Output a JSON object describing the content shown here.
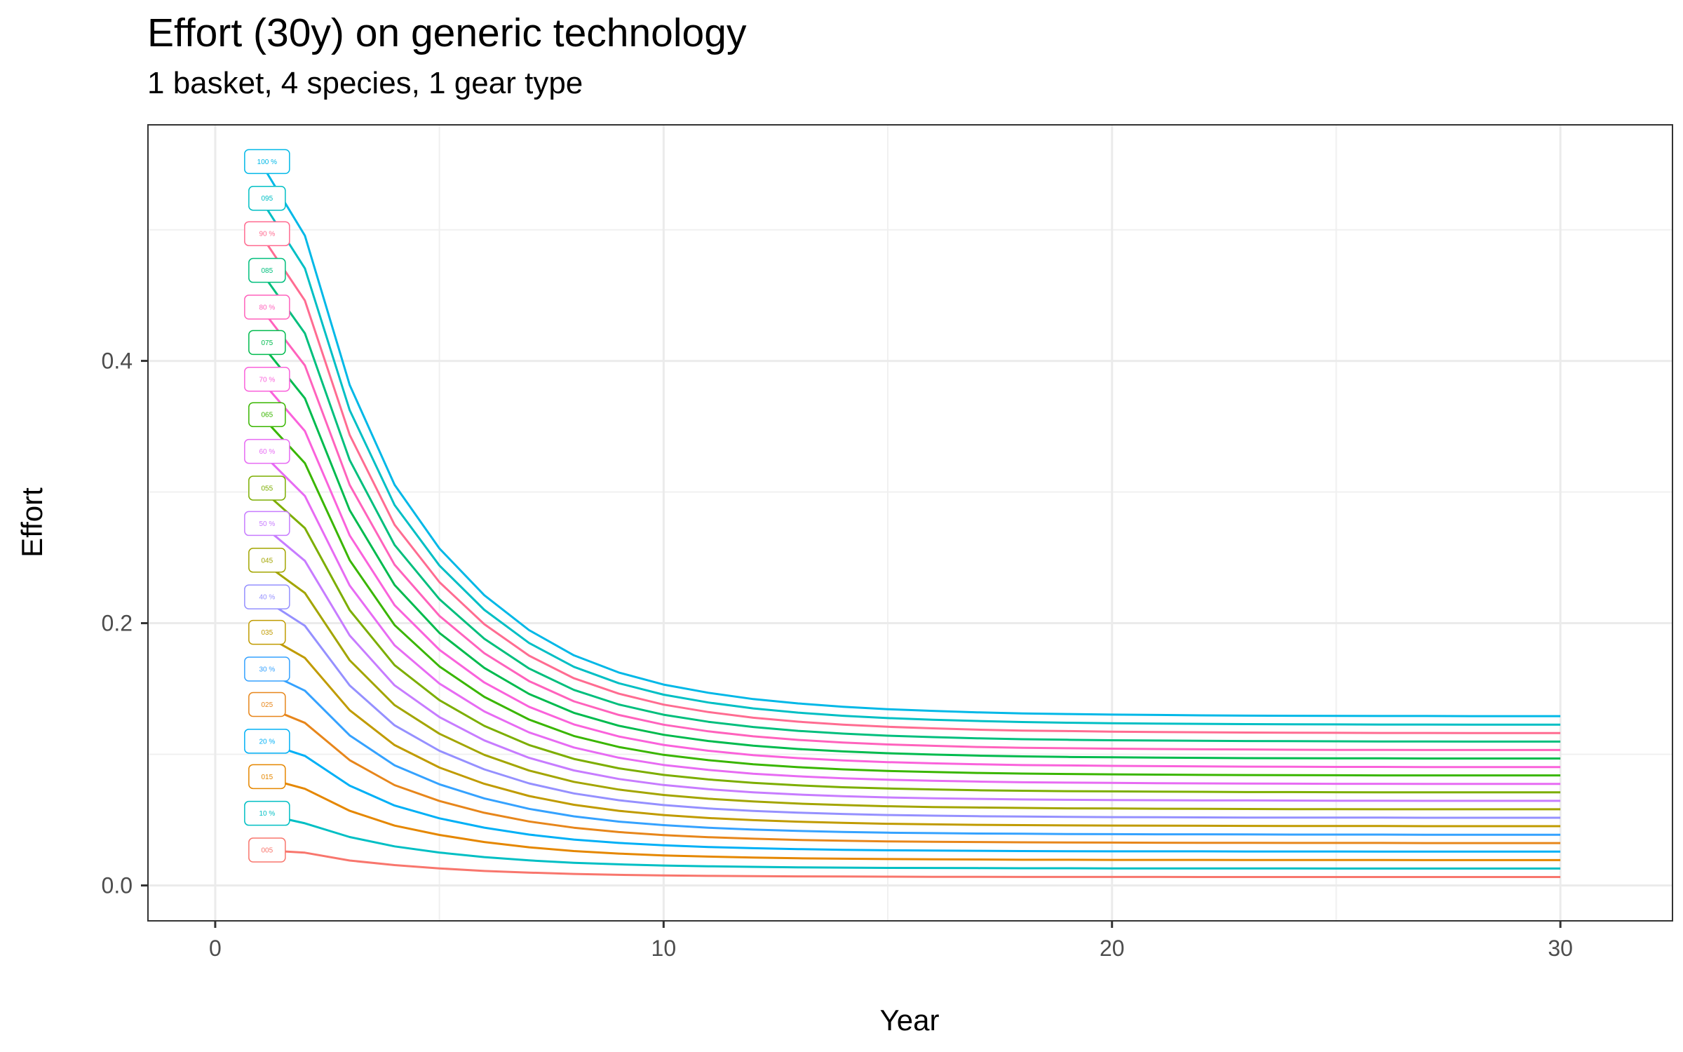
{
  "chart_data": {
    "type": "line",
    "title": "Effort (30y) on generic technology",
    "subtitle": "1 basket, 4 species, 1 gear type",
    "xlabel": "Year",
    "ylabel": "Effort",
    "xlim": [
      -1.5,
      32.5
    ],
    "ylim": [
      -0.027,
      0.58
    ],
    "x_ticks": [
      0,
      10,
      20,
      30
    ],
    "y_ticks": [
      0.0,
      0.2,
      0.4
    ],
    "grid": true,
    "legend": "none",
    "x": [
      1,
      2,
      3,
      4,
      5,
      6,
      7,
      8,
      9,
      10,
      11,
      12,
      13,
      14,
      15,
      16,
      17,
      18,
      19,
      20,
      21,
      22,
      23,
      24,
      25,
      26,
      27,
      28,
      29,
      30
    ],
    "series": [
      {
        "name": "005",
        "color": "#F8766D",
        "values": [
          0.027,
          0.025,
          0.019,
          0.0155,
          0.013,
          0.011,
          0.0098,
          0.0088,
          0.0081,
          0.0076,
          0.0073,
          0.0071,
          0.0069,
          0.0068,
          0.0067,
          0.0066,
          0.0066,
          0.0065,
          0.0065,
          0.0065,
          0.0065,
          0.0064,
          0.0064,
          0.0064,
          0.0064,
          0.0064,
          0.0064,
          0.0064,
          0.0064,
          0.0064
        ]
      },
      {
        "name": "10 %",
        "color": "#00BFC4",
        "values": [
          0.055,
          0.0474,
          0.0369,
          0.0298,
          0.0251,
          0.0216,
          0.0191,
          0.0173,
          0.0161,
          0.0152,
          0.0146,
          0.0142,
          0.0138,
          0.0136,
          0.0134,
          0.0133,
          0.0132,
          0.0131,
          0.0131,
          0.013,
          0.013,
          0.013,
          0.013,
          0.013,
          0.0129,
          0.0129,
          0.0129,
          0.0129,
          0.0129,
          0.0129
        ]
      },
      {
        "name": "015",
        "color": "#E58700",
        "values": [
          0.083,
          0.0737,
          0.0569,
          0.0456,
          0.0385,
          0.0331,
          0.0291,
          0.0262,
          0.0243,
          0.0229,
          0.022,
          0.0213,
          0.0207,
          0.0204,
          0.0201,
          0.0199,
          0.0198,
          0.0196,
          0.0196,
          0.0195,
          0.0195,
          0.0195,
          0.0194,
          0.0194,
          0.0194,
          0.0194,
          0.0193,
          0.0193,
          0.0193,
          0.0193
        ]
      },
      {
        "name": "20 %",
        "color": "#00B0F6",
        "values": [
          0.11,
          0.0988,
          0.0761,
          0.0609,
          0.0512,
          0.0441,
          0.0388,
          0.035,
          0.0324,
          0.0306,
          0.0293,
          0.0284,
          0.0277,
          0.0272,
          0.0268,
          0.0266,
          0.0264,
          0.0262,
          0.0261,
          0.026,
          0.026,
          0.026,
          0.0259,
          0.0259,
          0.0259,
          0.0258,
          0.0258,
          0.0258,
          0.0258,
          0.0258
        ]
      },
      {
        "name": "025",
        "color": "#E7861B",
        "values": [
          0.138,
          0.124,
          0.0955,
          0.0765,
          0.0644,
          0.0554,
          0.0488,
          0.044,
          0.0407,
          0.0384,
          0.0368,
          0.0356,
          0.0347,
          0.0341,
          0.0336,
          0.0333,
          0.0331,
          0.0329,
          0.0328,
          0.0327,
          0.0326,
          0.0325,
          0.0325,
          0.0324,
          0.0324,
          0.0324,
          0.0323,
          0.0323,
          0.0323,
          0.0323
        ]
      },
      {
        "name": "30 %",
        "color": "#35A2FF",
        "values": [
          0.165,
          0.1485,
          0.1144,
          0.0916,
          0.0771,
          0.0664,
          0.0584,
          0.0527,
          0.0487,
          0.046,
          0.044,
          0.0426,
          0.0416,
          0.0408,
          0.0402,
          0.0399,
          0.0396,
          0.0394,
          0.0392,
          0.0391,
          0.039,
          0.039,
          0.0389,
          0.0388,
          0.0388,
          0.0388,
          0.0387,
          0.0387,
          0.0387,
          0.0387
        ]
      },
      {
        "name": "035",
        "color": "#C09B00",
        "values": [
          0.193,
          0.1735,
          0.1336,
          0.107,
          0.0899,
          0.0775,
          0.0682,
          0.0615,
          0.0569,
          0.0537,
          0.0514,
          0.0498,
          0.0486,
          0.0477,
          0.047,
          0.0466,
          0.0462,
          0.046,
          0.0458,
          0.0457,
          0.0456,
          0.0455,
          0.0454,
          0.0453,
          0.0453,
          0.0453,
          0.0452,
          0.0452,
          0.0452,
          0.0452
        ]
      },
      {
        "name": "40 %",
        "color": "#9590FF",
        "values": [
          0.22,
          0.198,
          0.1525,
          0.1221,
          0.1027,
          0.0885,
          0.0778,
          0.0702,
          0.065,
          0.0613,
          0.0587,
          0.0568,
          0.0555,
          0.0545,
          0.0537,
          0.0532,
          0.0528,
          0.0525,
          0.0523,
          0.0521,
          0.052,
          0.0519,
          0.0518,
          0.0517,
          0.0517,
          0.0517,
          0.0516,
          0.0516,
          0.0516,
          0.0516
        ]
      },
      {
        "name": "045",
        "color": "#A3A500",
        "values": [
          0.248,
          0.223,
          0.1717,
          0.1375,
          0.1157,
          0.0996,
          0.0876,
          0.079,
          0.0731,
          0.069,
          0.0661,
          0.064,
          0.0624,
          0.0613,
          0.0604,
          0.0598,
          0.0594,
          0.0591,
          0.0588,
          0.0587,
          0.0585,
          0.0584,
          0.0583,
          0.0582,
          0.0582,
          0.0581,
          0.0581,
          0.0581,
          0.0581,
          0.0581
        ]
      },
      {
        "name": "50 %",
        "color": "#C77CFF",
        "values": [
          0.276,
          0.2475,
          0.1906,
          0.1526,
          0.1284,
          0.1106,
          0.0973,
          0.0877,
          0.0812,
          0.0766,
          0.0734,
          0.071,
          0.0693,
          0.0681,
          0.0671,
          0.0665,
          0.066,
          0.0656,
          0.0653,
          0.0651,
          0.065,
          0.0649,
          0.0648,
          0.0647,
          0.0646,
          0.0646,
          0.0645,
          0.0645,
          0.0645,
          0.0645
        ]
      },
      {
        "name": "055",
        "color": "#7CAE00",
        "values": [
          0.303,
          0.2725,
          0.2099,
          0.168,
          0.1413,
          0.1217,
          0.1071,
          0.0965,
          0.0893,
          0.0843,
          0.0808,
          0.0782,
          0.0763,
          0.0749,
          0.0739,
          0.0732,
          0.0726,
          0.0722,
          0.0719,
          0.0717,
          0.0715,
          0.0714,
          0.0712,
          0.0712,
          0.0711,
          0.071,
          0.071,
          0.071,
          0.071,
          0.071
        ]
      },
      {
        "name": "60 %",
        "color": "#E76BF3",
        "values": [
          0.331,
          0.297,
          0.2287,
          0.1831,
          0.154,
          0.1327,
          0.1167,
          0.1052,
          0.0974,
          0.0919,
          0.0881,
          0.0852,
          0.0832,
          0.0817,
          0.0806,
          0.0798,
          0.0792,
          0.0787,
          0.0784,
          0.0782,
          0.078,
          0.0778,
          0.0777,
          0.0776,
          0.0775,
          0.0775,
          0.0774,
          0.0774,
          0.0774,
          0.0774
        ]
      },
      {
        "name": "065",
        "color": "#39B600",
        "values": [
          0.359,
          0.322,
          0.248,
          0.1985,
          0.167,
          0.1438,
          0.1265,
          0.114,
          0.1056,
          0.0996,
          0.0955,
          0.0924,
          0.0902,
          0.0885,
          0.0873,
          0.0865,
          0.0858,
          0.0853,
          0.085,
          0.0847,
          0.0845,
          0.0843,
          0.0842,
          0.0841,
          0.084,
          0.0839,
          0.0839,
          0.0839,
          0.0839,
          0.0839
        ]
      },
      {
        "name": "70 %",
        "color": "#FA62DB",
        "values": [
          0.386,
          0.3465,
          0.2669,
          0.2137,
          0.1797,
          0.1548,
          0.1362,
          0.1228,
          0.1136,
          0.1072,
          0.1027,
          0.0994,
          0.0971,
          0.0953,
          0.094,
          0.0931,
          0.0924,
          0.0918,
          0.0915,
          0.0912,
          0.091,
          0.0908,
          0.0906,
          0.0905,
          0.0904,
          0.0904,
          0.0903,
          0.0903,
          0.0903,
          0.0903
        ]
      },
      {
        "name": "075",
        "color": "#00BB4E",
        "values": [
          0.414,
          0.3715,
          0.2861,
          0.2291,
          0.1926,
          0.1659,
          0.146,
          0.1316,
          0.1218,
          0.1149,
          0.1101,
          0.1066,
          0.104,
          0.1022,
          0.1008,
          0.0998,
          0.099,
          0.0984,
          0.098,
          0.0977,
          0.0975,
          0.0973,
          0.0971,
          0.097,
          0.0969,
          0.0969,
          0.0968,
          0.0968,
          0.0968,
          0.0968
        ]
      },
      {
        "name": "80 %",
        "color": "#FF62BC",
        "values": [
          0.441,
          0.3965,
          0.3054,
          0.2445,
          0.2056,
          0.1771,
          0.1558,
          0.1404,
          0.13,
          0.1226,
          0.1175,
          0.1137,
          0.111,
          0.109,
          0.1075,
          0.1065,
          0.1056,
          0.105,
          0.1046,
          0.1043,
          0.104,
          0.1038,
          0.1037,
          0.1035,
          0.1034,
          0.1034,
          0.1033,
          0.1033,
          0.1033,
          0.1033
        ]
      },
      {
        "name": "085",
        "color": "#00BF7D",
        "values": [
          0.469,
          0.421,
          0.3243,
          0.2596,
          0.2183,
          0.1881,
          0.1654,
          0.1491,
          0.138,
          0.1302,
          0.1248,
          0.1208,
          0.1179,
          0.1158,
          0.1142,
          0.1131,
          0.1122,
          0.1115,
          0.1111,
          0.1107,
          0.1105,
          0.1103,
          0.1101,
          0.11,
          0.1099,
          0.1098,
          0.1098,
          0.1097,
          0.1097,
          0.1097
        ]
      },
      {
        "name": "90 %",
        "color": "#FF6C91",
        "values": [
          0.497,
          0.446,
          0.3435,
          0.275,
          0.2313,
          0.1992,
          0.1752,
          0.158,
          0.1462,
          0.1379,
          0.1322,
          0.1279,
          0.1249,
          0.1226,
          0.121,
          0.1198,
          0.1188,
          0.1181,
          0.1177,
          0.1173,
          0.117,
          0.1168,
          0.1166,
          0.1165,
          0.1164,
          0.1163,
          0.1163,
          0.1162,
          0.1162,
          0.1162
        ]
      },
      {
        "name": "095",
        "color": "#00BFC4",
        "values": [
          0.524,
          0.4705,
          0.3624,
          0.2901,
          0.244,
          0.2102,
          0.1849,
          0.1667,
          0.1542,
          0.1455,
          0.1395,
          0.135,
          0.1318,
          0.1294,
          0.1276,
          0.1264,
          0.1254,
          0.1246,
          0.1241,
          0.1237,
          0.1234,
          0.1232,
          0.123,
          0.1229,
          0.1228,
          0.1227,
          0.1227,
          0.1226,
          0.1226,
          0.1226
        ]
      },
      {
        "name": "100 %",
        "color": "#00B8E7",
        "values": [
          0.552,
          0.4955,
          0.3816,
          0.3055,
          0.257,
          0.2213,
          0.1947,
          0.1755,
          0.1624,
          0.1532,
          0.1469,
          0.1421,
          0.1388,
          0.1363,
          0.1344,
          0.1331,
          0.132,
          0.1312,
          0.1307,
          0.1303,
          0.13,
          0.1297,
          0.1295,
          0.1294,
          0.1293,
          0.1292,
          0.1292,
          0.1291,
          0.1291,
          0.1291
        ]
      }
    ]
  }
}
